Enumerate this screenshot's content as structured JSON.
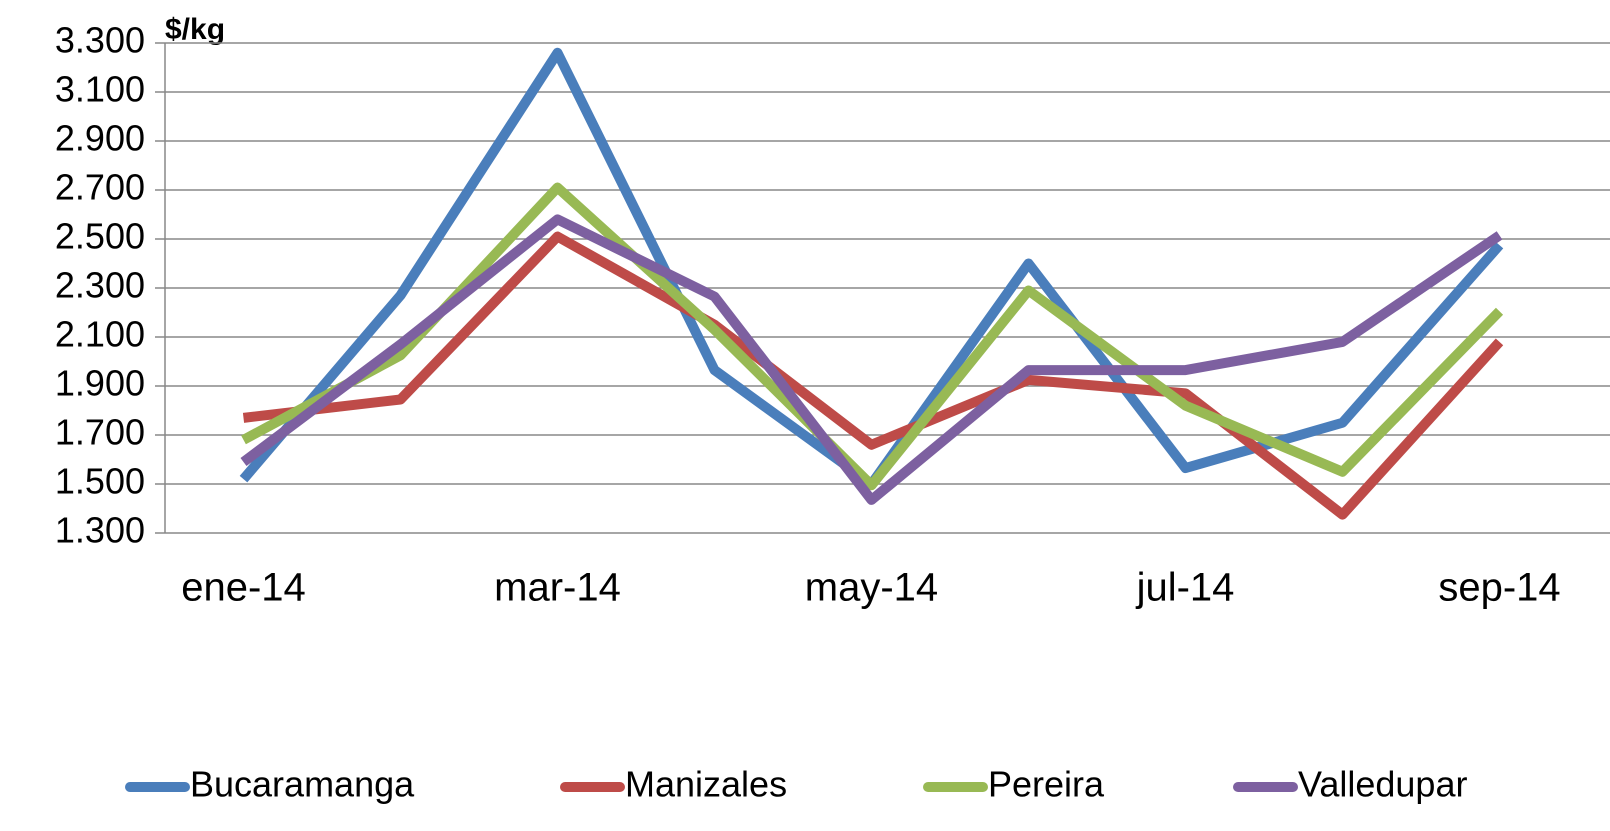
{
  "chart_data": {
    "type": "line",
    "y_label": "$/kg",
    "categories": [
      "ene-14",
      null,
      "mar-14",
      null,
      "may-14",
      null,
      "jul-14",
      null,
      "sep-14"
    ],
    "series": [
      {
        "name": "Bucaramanga",
        "color": "#4a7ebb",
        "values": [
          1520,
          2270,
          3260,
          1965,
          1500,
          2400,
          1565,
          1750,
          2475
        ]
      },
      {
        "name": "Manizales",
        "color": "#be4b48",
        "values": [
          1770,
          1845,
          2510,
          2150,
          1660,
          1925,
          1870,
          1375,
          2080
        ]
      },
      {
        "name": "Pereira",
        "color": "#98b954",
        "values": [
          1680,
          2025,
          2710,
          2130,
          1495,
          2290,
          1820,
          1550,
          2205
        ]
      },
      {
        "name": "Valledupar",
        "color": "#7d60a0",
        "values": [
          1590,
          2070,
          2580,
          2265,
          1435,
          1965,
          1965,
          2080,
          2515
        ]
      }
    ],
    "ylim": [
      1300,
      3300
    ],
    "yticks": [
      {
        "value": 1300,
        "label": "1.300"
      },
      {
        "value": 1500,
        "label": "1.500"
      },
      {
        "value": 1700,
        "label": "1.700"
      },
      {
        "value": 1900,
        "label": "1.900"
      },
      {
        "value": 2100,
        "label": "2.100"
      },
      {
        "value": 2300,
        "label": "2.300"
      },
      {
        "value": 2500,
        "label": "2.500"
      },
      {
        "value": 2700,
        "label": "2.700"
      },
      {
        "value": 2900,
        "label": "2.900"
      },
      {
        "value": 3100,
        "label": "3.100"
      },
      {
        "value": 3300,
        "label": "3.300"
      }
    ],
    "grid": true,
    "legend": "bottom"
  }
}
